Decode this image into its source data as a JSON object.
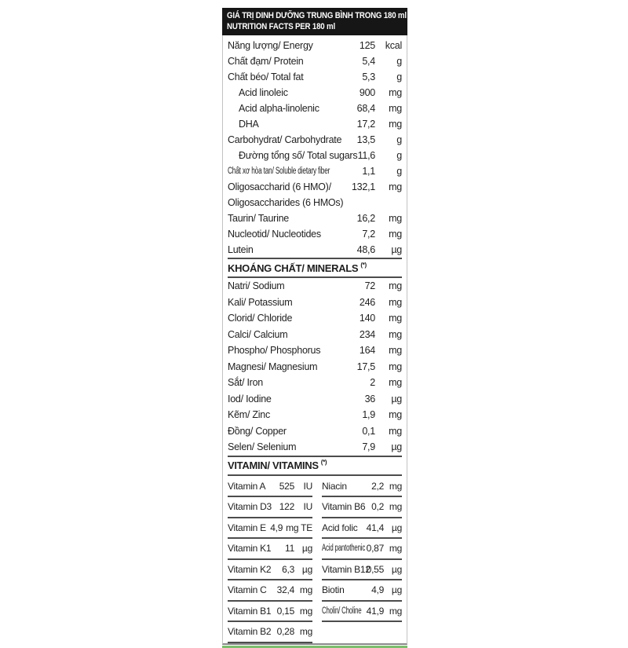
{
  "colors": {
    "header_bg": "#161616",
    "text": "#1f1f1f",
    "rule": "#4c4c4c",
    "outer_border": "#c2c2c2",
    "accent_green": "#7dbd6e"
  },
  "header": {
    "line1": "GIÁ TRỊ DINH DƯỠNG TRUNG BÌNH TRONG 180 ml",
    "line2": "NUTRITION FACTS PER 180 ml"
  },
  "main_rows": [
    {
      "label": "Năng lượng/ Energy",
      "value": "125",
      "unit": "kcal",
      "variant": ""
    },
    {
      "label": "Chất đạm/ Protein",
      "value": "5,4",
      "unit": "g",
      "variant": ""
    },
    {
      "label": "Chất béo/ Total fat",
      "value": "5,3",
      "unit": "g",
      "variant": ""
    },
    {
      "label": "Acid linoleic",
      "value": "900",
      "unit": "mg",
      "variant": "indent"
    },
    {
      "label": "Acid alpha-linolenic",
      "value": "68,4",
      "unit": "mg",
      "variant": "indent"
    },
    {
      "label": "DHA",
      "value": "17,2",
      "unit": "mg",
      "variant": "indent"
    },
    {
      "label": "Carbohydrat/ Carbohydrate",
      "value": "13,5",
      "unit": "g",
      "variant": ""
    },
    {
      "label": "Đường tổng số/ Total sugars",
      "value": "11,6",
      "unit": "g",
      "variant": "indent"
    },
    {
      "label": "Chất xơ hòa tan/ Soluble dietary fiber",
      "value": "1,1",
      "unit": "g",
      "variant": "condensed"
    },
    {
      "label": "Oligosaccharid (6 HMO)/",
      "value": "132,1",
      "unit": "mg",
      "variant": ""
    },
    {
      "label": "Oligosaccharides (6 HMOs)",
      "value": "",
      "unit": "",
      "variant": ""
    },
    {
      "label": "Taurin/ Taurine",
      "value": "16,2",
      "unit": "mg",
      "variant": ""
    },
    {
      "label": "Nucleotid/ Nucleotides",
      "value": "7,2",
      "unit": "mg",
      "variant": ""
    },
    {
      "label": "Lutein",
      "value": "48,6",
      "unit": "µg",
      "variant": ""
    }
  ],
  "minerals": {
    "title": "KHOÁNG CHẤT/ MINERALS",
    "note": "(*)",
    "rows": [
      {
        "label": "Natri/ Sodium",
        "value": "72",
        "unit": "mg",
        "variant": ""
      },
      {
        "label": "Kali/ Potassium",
        "value": "246",
        "unit": "mg",
        "variant": ""
      },
      {
        "label": "Clorid/ Chloride",
        "value": "140",
        "unit": "mg",
        "variant": ""
      },
      {
        "label": "Calci/ Calcium",
        "value": "234",
        "unit": "mg",
        "variant": ""
      },
      {
        "label": "Phospho/ Phosphorus",
        "value": "164",
        "unit": "mg",
        "variant": ""
      },
      {
        "label": "Magnesi/ Magnesium",
        "value": "17,5",
        "unit": "mg",
        "variant": ""
      },
      {
        "label": "Sắt/ Iron",
        "value": "2",
        "unit": "mg",
        "variant": ""
      },
      {
        "label": "Iod/ Iodine",
        "value": "36",
        "unit": "µg",
        "variant": ""
      },
      {
        "label": "Kẽm/ Zinc",
        "value": "1,9",
        "unit": "mg",
        "variant": ""
      },
      {
        "label": "Đồng/ Copper",
        "value": "0,1",
        "unit": "mg",
        "variant": ""
      },
      {
        "label": "Selen/ Selenium",
        "value": "7,9",
        "unit": "µg",
        "variant": ""
      }
    ]
  },
  "vitamins": {
    "title": "VITAMIN/ VITAMINS",
    "note": "(*)",
    "left": [
      {
        "label": "Vitamin A",
        "value": "525",
        "unit": "IU",
        "variant": ""
      },
      {
        "label": "Vitamin D3",
        "value": "122",
        "unit": "IU",
        "variant": ""
      },
      {
        "label": "Vitamin E",
        "value": "4,9",
        "unit": "mg TE",
        "variant": ""
      },
      {
        "label": "Vitamin K1",
        "value": "11",
        "unit": "µg",
        "variant": ""
      },
      {
        "label": "Vitamin K2",
        "value": "6,3",
        "unit": "µg",
        "variant": ""
      },
      {
        "label": "Vitamin C",
        "value": "32,4",
        "unit": "mg",
        "variant": ""
      },
      {
        "label": "Vitamin B1",
        "value": "0,15",
        "unit": "mg",
        "variant": ""
      },
      {
        "label": "Vitamin B2",
        "value": "0,28",
        "unit": "mg",
        "variant": ""
      }
    ],
    "right": [
      {
        "label": "Niacin",
        "value": "2,2",
        "unit": "mg",
        "variant": ""
      },
      {
        "label": "Vitamin B6",
        "value": "0,2",
        "unit": "mg",
        "variant": ""
      },
      {
        "label": "Acid folic",
        "value": "41,4",
        "unit": "µg",
        "variant": ""
      },
      {
        "label": "Acid pantothenic",
        "value": "0,87",
        "unit": "mg",
        "variant": "condensed"
      },
      {
        "label": "Vitamin B12",
        "value": "0,55",
        "unit": "µg",
        "variant": ""
      },
      {
        "label": "Biotin",
        "value": "4,9",
        "unit": "µg",
        "variant": ""
      },
      {
        "label": "Cholin/ Choline",
        "value": "41,9",
        "unit": "mg",
        "variant": "condensed"
      }
    ]
  }
}
